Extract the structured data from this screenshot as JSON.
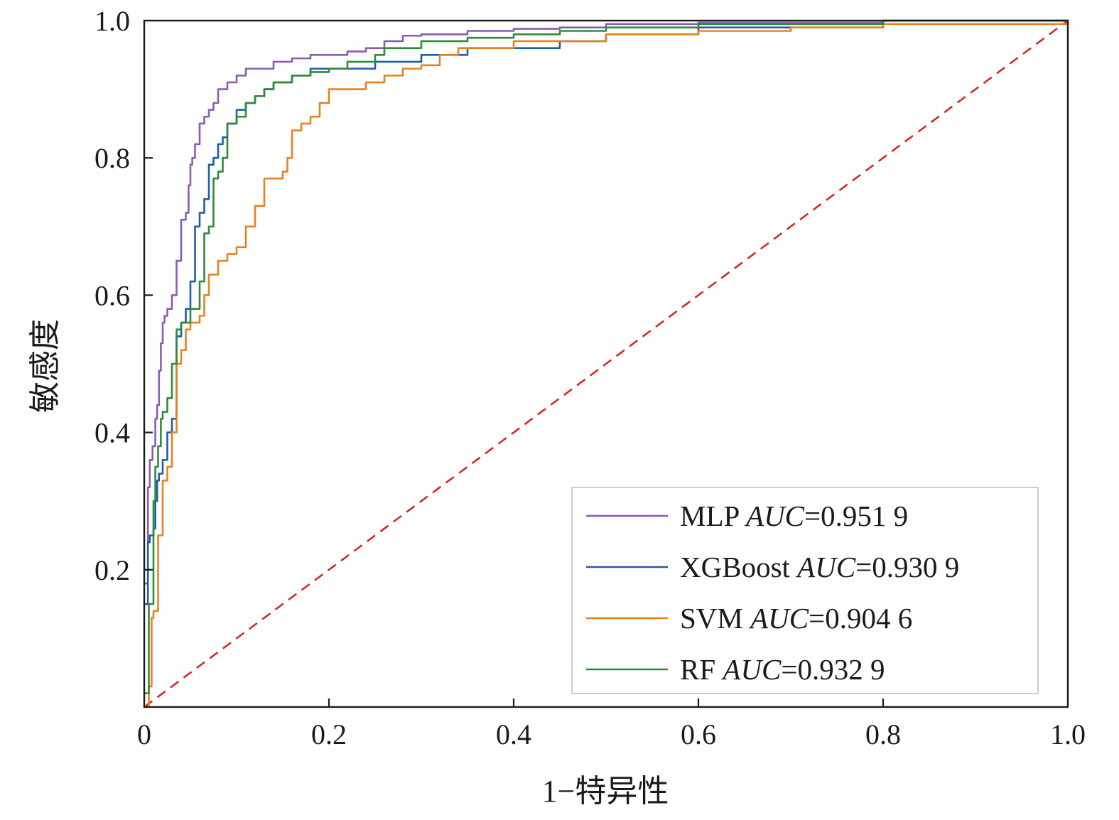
{
  "chart_data": {
    "type": "line",
    "title": "",
    "xlabel": "1−特异性",
    "ylabel": "敏感度",
    "xlim": [
      0,
      1
    ],
    "ylim": [
      0,
      1
    ],
    "x_ticks": [
      "0",
      "0.2",
      "0.4",
      "0.6",
      "0.8",
      "1.0"
    ],
    "y_ticks": [
      "0.2",
      "0.4",
      "0.6",
      "0.8",
      "1.0"
    ],
    "grid": false,
    "legend_position": "bottom-right",
    "diagonal": {
      "from": [
        0,
        0
      ],
      "to": [
        1,
        1
      ],
      "style": "dashed",
      "color": "#d62728"
    },
    "series": [
      {
        "name": "MLP",
        "auc_label": "AUC",
        "auc_value": "=0.951 9",
        "color": "#8a5cb4",
        "x": [
          0,
          0.004,
          0.006,
          0.009,
          0.012,
          0.014,
          0.016,
          0.018,
          0.02,
          0.022,
          0.025,
          0.03,
          0.035,
          0.04,
          0.045,
          0.048,
          0.05,
          0.052,
          0.055,
          0.06,
          0.065,
          0.07,
          0.075,
          0.08,
          0.09,
          0.1,
          0.11,
          0.12,
          0.14,
          0.16,
          0.18,
          0.2,
          0.22,
          0.24,
          0.26,
          0.28,
          0.3,
          0.35,
          0.4,
          0.45,
          0.5,
          0.6,
          0.8,
          1.0
        ],
        "y": [
          0.18,
          0.32,
          0.36,
          0.38,
          0.42,
          0.44,
          0.49,
          0.53,
          0.56,
          0.57,
          0.58,
          0.6,
          0.65,
          0.71,
          0.72,
          0.76,
          0.79,
          0.8,
          0.82,
          0.85,
          0.86,
          0.87,
          0.88,
          0.9,
          0.91,
          0.92,
          0.93,
          0.93,
          0.94,
          0.945,
          0.95,
          0.95,
          0.955,
          0.96,
          0.97,
          0.978,
          0.98,
          0.985,
          0.988,
          0.99,
          0.995,
          0.997,
          1.0,
          1.0
        ]
      },
      {
        "name": "XGBoost",
        "auc_label": "AUC",
        "auc_value": "=0.930 9",
        "color": "#1f5ea8",
        "x": [
          0,
          0.004,
          0.006,
          0.01,
          0.012,
          0.014,
          0.016,
          0.02,
          0.025,
          0.03,
          0.035,
          0.04,
          0.045,
          0.05,
          0.055,
          0.06,
          0.065,
          0.07,
          0.075,
          0.08,
          0.085,
          0.09,
          0.1,
          0.11,
          0.12,
          0.13,
          0.14,
          0.16,
          0.18,
          0.2,
          0.25,
          0.3,
          0.35,
          0.4,
          0.45,
          0.5,
          0.6,
          0.8,
          1.0
        ],
        "y": [
          0.15,
          0.24,
          0.25,
          0.26,
          0.3,
          0.33,
          0.34,
          0.36,
          0.4,
          0.42,
          0.54,
          0.56,
          0.58,
          0.62,
          0.7,
          0.72,
          0.74,
          0.79,
          0.8,
          0.82,
          0.83,
          0.85,
          0.87,
          0.88,
          0.89,
          0.9,
          0.91,
          0.92,
          0.93,
          0.93,
          0.94,
          0.95,
          0.96,
          0.96,
          0.97,
          0.98,
          0.99,
          1.0,
          1.0
        ]
      },
      {
        "name": "SVM",
        "auc_label": "AUC",
        "auc_value": "=0.904 6",
        "color": "#e8821e",
        "x": [
          0,
          0.005,
          0.008,
          0.01,
          0.015,
          0.02,
          0.025,
          0.03,
          0.035,
          0.04,
          0.045,
          0.05,
          0.06,
          0.065,
          0.07,
          0.08,
          0.09,
          0.1,
          0.11,
          0.12,
          0.13,
          0.14,
          0.15,
          0.155,
          0.16,
          0.17,
          0.18,
          0.19,
          0.2,
          0.22,
          0.24,
          0.26,
          0.28,
          0.3,
          0.32,
          0.34,
          0.4,
          0.5,
          0.6,
          0.7,
          0.8,
          1.0
        ],
        "y": [
          0.0,
          0.03,
          0.13,
          0.14,
          0.25,
          0.33,
          0.35,
          0.4,
          0.5,
          0.52,
          0.55,
          0.56,
          0.57,
          0.6,
          0.63,
          0.65,
          0.66,
          0.67,
          0.7,
          0.73,
          0.77,
          0.77,
          0.78,
          0.8,
          0.84,
          0.85,
          0.86,
          0.88,
          0.9,
          0.9,
          0.91,
          0.92,
          0.93,
          0.935,
          0.95,
          0.96,
          0.97,
          0.98,
          0.985,
          0.99,
          0.995,
          1.0
        ]
      },
      {
        "name": "RF",
        "auc_label": "AUC",
        "auc_value": "=0.932 9",
        "color": "#2e8b3a",
        "x": [
          0,
          0.005,
          0.01,
          0.012,
          0.015,
          0.018,
          0.02,
          0.025,
          0.03,
          0.035,
          0.04,
          0.05,
          0.06,
          0.065,
          0.07,
          0.075,
          0.08,
          0.085,
          0.09,
          0.1,
          0.11,
          0.12,
          0.13,
          0.14,
          0.16,
          0.18,
          0.2,
          0.22,
          0.25,
          0.26,
          0.3,
          0.35,
          0.4,
          0.45,
          0.5,
          0.6,
          0.8,
          1.0
        ],
        "y": [
          0.02,
          0.15,
          0.3,
          0.35,
          0.38,
          0.42,
          0.43,
          0.45,
          0.5,
          0.55,
          0.56,
          0.58,
          0.62,
          0.69,
          0.7,
          0.77,
          0.78,
          0.8,
          0.85,
          0.86,
          0.88,
          0.89,
          0.9,
          0.91,
          0.92,
          0.925,
          0.93,
          0.94,
          0.95,
          0.96,
          0.97,
          0.975,
          0.98,
          0.985,
          0.99,
          0.995,
          1.0,
          1.0
        ]
      }
    ]
  }
}
